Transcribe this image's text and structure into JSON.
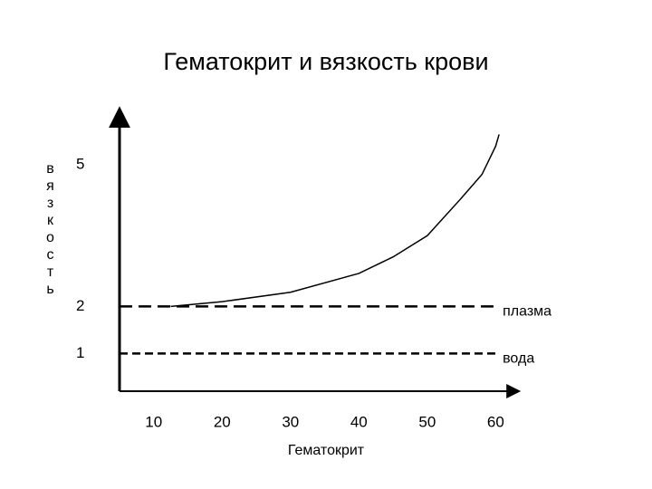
{
  "chart_data": {
    "type": "line",
    "title": "Гематокрит и вязкость крови",
    "x_label": "Гематокрит",
    "y_label": "вязкость",
    "xlim": [
      5,
      63
    ],
    "xticks": [
      10,
      20,
      30,
      40,
      50,
      60
    ],
    "ylim": [
      0.2,
      6.1
    ],
    "yticks": [
      1,
      2,
      5
    ],
    "grid": false,
    "series": [
      {
        "color": "#000000",
        "dash": false,
        "x": [
          12.5,
          20,
          30,
          40,
          45,
          50,
          55,
          58,
          60,
          60.5
        ],
        "values": [
          2,
          2.1,
          2.3,
          2.7,
          3.05,
          3.5,
          4.3,
          4.8,
          5.4,
          5.65
        ]
      },
      {
        "name": "плазма",
        "color": "#000000",
        "dash": true,
        "x": [
          5,
          60.5
        ],
        "values": [
          2,
          2
        ]
      },
      {
        "name": "вода",
        "color": "#000000",
        "dash": true,
        "x": [
          5,
          60.5
        ],
        "values": [
          1,
          1
        ]
      }
    ]
  }
}
